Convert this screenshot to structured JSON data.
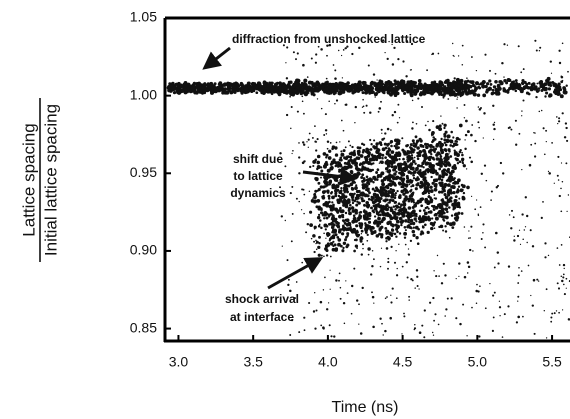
{
  "chart_data": {
    "type": "image",
    "xlabel": "Time (ns)",
    "ylabel": {
      "numerator": "Lattice spacing",
      "denominator": "Initial lattice spacing"
    },
    "xlim": [
      2.91,
      5.62
    ],
    "xticks": [
      {
        "value": 3.0,
        "label": "3.0"
      },
      3.5,
      {
        "value": 4.0,
        "label": "4.0"
      },
      4.5,
      {
        "value": 5.0,
        "label": "5.0"
      },
      5.5
    ],
    "ylim": [
      0.842,
      1.05
    ],
    "yticks": [
      1.05,
      {
        "value": 1.0,
        "label": "1.00"
      },
      0.95,
      {
        "value": 0.9,
        "label": "0.90"
      },
      0.85
    ],
    "annotations": [
      {
        "lines": [
          "diffraction from unshocked lattice"
        ]
      },
      {
        "lines": [
          "shift due",
          "to lattice",
          "dynamics"
        ]
      },
      {
        "lines": [
          "shock arrival",
          "at interface"
        ]
      }
    ]
  }
}
